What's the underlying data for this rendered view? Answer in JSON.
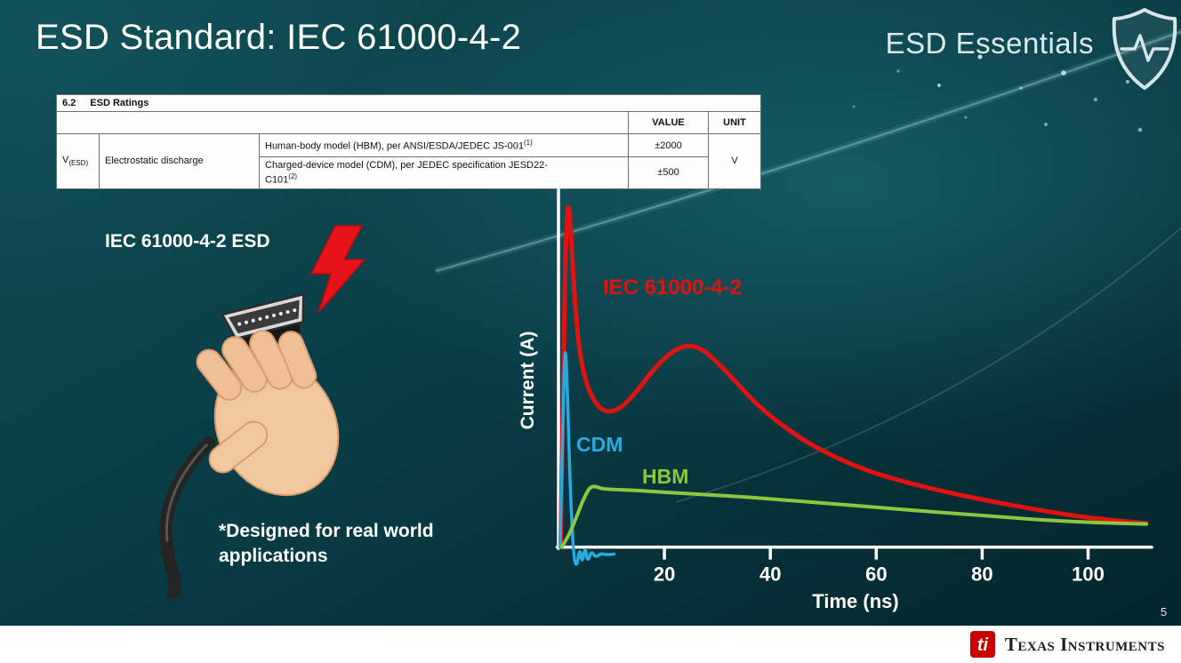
{
  "slide": {
    "title": "ESD Standard: IEC 61000-4-2",
    "brand": "ESD Essentials",
    "page_number": "5",
    "logo_text": "Texas Instruments",
    "logo_glyph": "ti"
  },
  "ratings_table": {
    "section_number": "6.2",
    "section_title": "ESD Ratings",
    "value_header": "VALUE",
    "unit_header": "UNIT",
    "symbol_base": "V",
    "symbol_sub": "(ESD)",
    "parameter": "Electrostatic discharge",
    "rows": [
      {
        "line1": "Human-body model (HBM), per ANSI/ESDA/JEDEC JS-001",
        "line2": "",
        "footnote": "(1)",
        "value": "±2000"
      },
      {
        "line1": "Charged-device model (CDM), per JEDEC specification JESD22-",
        "line2": "C101",
        "footnote": "(2)",
        "value": "±500"
      }
    ],
    "unit": "V"
  },
  "left_panel": {
    "caption": "IEC 61000-4-2 ESD",
    "note": "*Designed for real world applications"
  },
  "chart_data": {
    "type": "line",
    "title": "",
    "xlabel": "Time (ns)",
    "ylabel": "Current (A)",
    "xlim": [
      0,
      112
    ],
    "ylim": [
      -0.08,
      1.02
    ],
    "x_ticks": [
      20,
      40,
      60,
      80,
      100
    ],
    "grid": false,
    "legend_position": "inline-labels",
    "axis_color": "#ffffff",
    "series": [
      {
        "name": "IEC 61000-4-2",
        "color": "#e01212",
        "points": [
          [
            0.4,
            0.0
          ],
          [
            0.9,
            0.45
          ],
          [
            1.3,
            0.85
          ],
          [
            1.8,
            1.0
          ],
          [
            2.3,
            0.92
          ],
          [
            3.0,
            0.72
          ],
          [
            4.0,
            0.55
          ],
          [
            5.5,
            0.455
          ],
          [
            7.5,
            0.4
          ],
          [
            9.5,
            0.385
          ],
          [
            12,
            0.4
          ],
          [
            15,
            0.45
          ],
          [
            18,
            0.51
          ],
          [
            21,
            0.555
          ],
          [
            24,
            0.58
          ],
          [
            27,
            0.57
          ],
          [
            30,
            0.53
          ],
          [
            34,
            0.465
          ],
          [
            38,
            0.4
          ],
          [
            43,
            0.34
          ],
          [
            48,
            0.29
          ],
          [
            54,
            0.245
          ],
          [
            60,
            0.21
          ],
          [
            67,
            0.18
          ],
          [
            74,
            0.155
          ],
          [
            82,
            0.13
          ],
          [
            90,
            0.108
          ],
          [
            98,
            0.088
          ],
          [
            104,
            0.078
          ],
          [
            111,
            0.068
          ]
        ]
      },
      {
        "name": "CDM",
        "color": "#29abe2",
        "points": [
          [
            0.3,
            0.0
          ],
          [
            0.7,
            0.25
          ],
          [
            1.0,
            0.47
          ],
          [
            1.3,
            0.59
          ],
          [
            1.7,
            0.44
          ],
          [
            2.1,
            0.22
          ],
          [
            2.6,
            0.04
          ],
          [
            3.0,
            -0.04
          ],
          [
            3.5,
            -0.055
          ],
          [
            4.0,
            0.0
          ],
          [
            4.5,
            -0.05
          ],
          [
            5.0,
            0.005
          ],
          [
            5.5,
            -0.045
          ],
          [
            6.2,
            -0.01
          ],
          [
            7.0,
            -0.03
          ],
          [
            8.0,
            -0.018
          ],
          [
            9.0,
            -0.022
          ],
          [
            10.5,
            -0.02
          ]
        ]
      },
      {
        "name": "HBM",
        "color": "#8dc63f",
        "points": [
          [
            0.6,
            0.0
          ],
          [
            1.5,
            0.02
          ],
          [
            3.0,
            0.07
          ],
          [
            4.5,
            0.13
          ],
          [
            5.8,
            0.17
          ],
          [
            6.8,
            0.175
          ],
          [
            8.0,
            0.168
          ],
          [
            10,
            0.165
          ],
          [
            14,
            0.163
          ],
          [
            20,
            0.157
          ],
          [
            28,
            0.15
          ],
          [
            36,
            0.143
          ],
          [
            44,
            0.133
          ],
          [
            52,
            0.124
          ],
          [
            60,
            0.114
          ],
          [
            68,
            0.104
          ],
          [
            76,
            0.095
          ],
          [
            84,
            0.086
          ],
          [
            92,
            0.077
          ],
          [
            100,
            0.071
          ],
          [
            106,
            0.068
          ],
          [
            111,
            0.066
          ]
        ]
      }
    ]
  }
}
